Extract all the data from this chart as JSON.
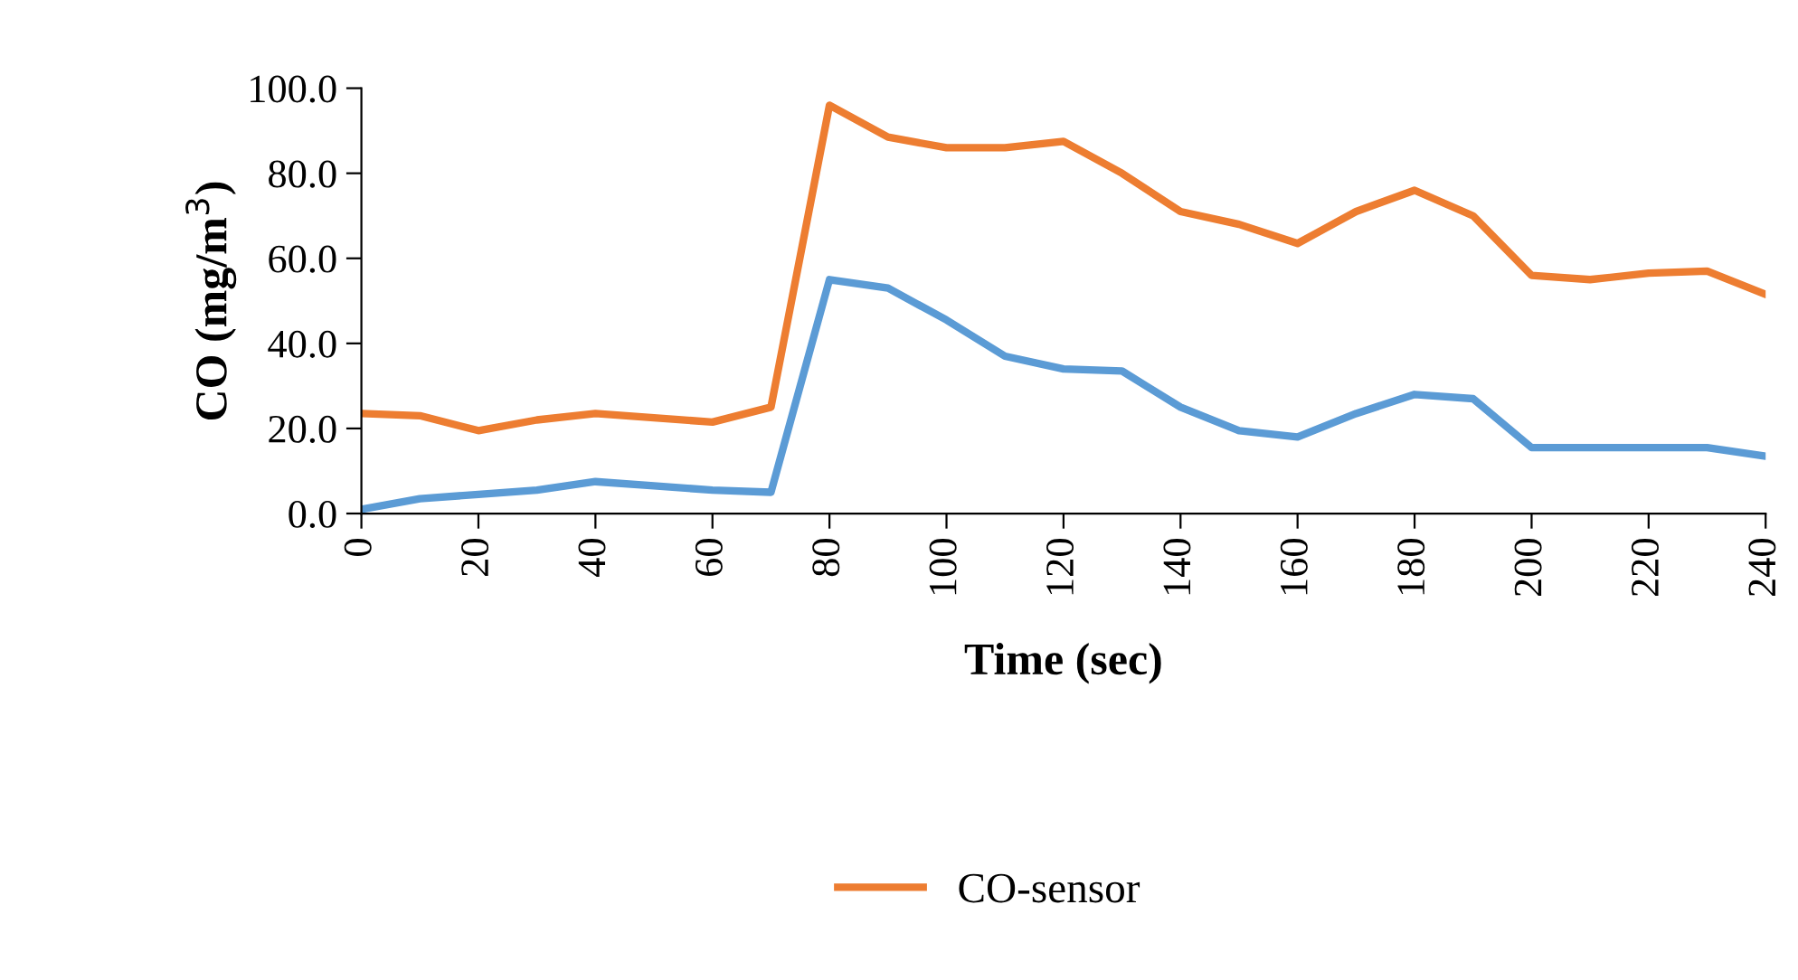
{
  "chart_data": {
    "type": "line",
    "xlabel": "Time (sec)",
    "ylabel": "CO (mg/m$^{3}$)",
    "x": [
      0,
      10,
      20,
      30,
      40,
      50,
      60,
      70,
      80,
      90,
      100,
      110,
      120,
      130,
      140,
      150,
      160,
      170,
      180,
      190,
      200,
      210,
      220,
      230,
      240
    ],
    "series": [
      {
        "color": "#5b9bd5",
        "values": [
          1,
          3.5,
          4.5,
          5.5,
          7.5,
          6.5,
          5.5,
          5,
          55,
          53,
          45.5,
          37,
          34,
          33.5,
          25,
          19.5,
          18,
          23.5,
          28,
          27,
          15.5,
          15.5,
          15.5,
          15.5,
          13.5
        ]
      },
      {
        "name": "CO-sensor",
        "color": "#ed7d31",
        "values": [
          23.5,
          23,
          19.5,
          22,
          23.5,
          22.5,
          21.5,
          25,
          96,
          88.5,
          86,
          86,
          87.5,
          80,
          71,
          68,
          63.5,
          71,
          76,
          70,
          56,
          55,
          56.5,
          57,
          51.5
        ]
      }
    ],
    "xlim": [
      0,
      240
    ],
    "xticks": [
      0,
      20,
      40,
      60,
      80,
      100,
      120,
      140,
      160,
      180,
      200,
      220,
      240
    ],
    "ylim": [
      0,
      100
    ],
    "yticks": [
      {
        "value": 0,
        "label": "0.0"
      },
      {
        "value": 20,
        "label": "20.0"
      },
      {
        "value": 40,
        "label": "40.0"
      },
      {
        "value": 60,
        "label": "60.0"
      },
      {
        "value": 80,
        "label": "80.0"
      },
      {
        "value": 100,
        "label": "100.0"
      }
    ],
    "grid": false,
    "legend": "bottom",
    "marker": "none",
    "line_style": "solid"
  }
}
